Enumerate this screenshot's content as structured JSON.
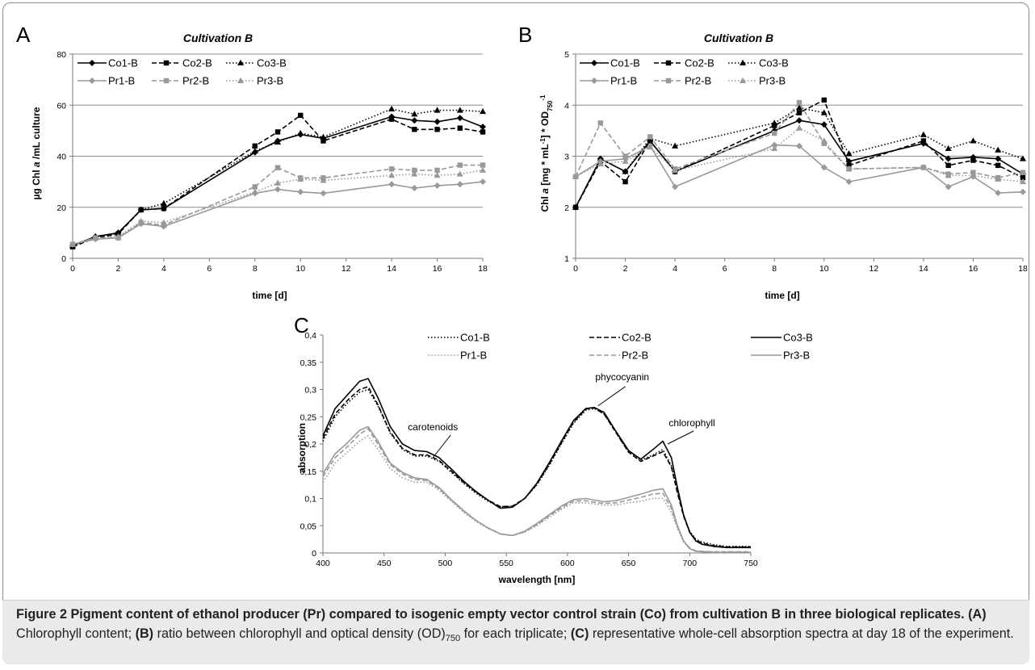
{
  "chart_data": [
    {
      "panel": "A",
      "type": "line",
      "title": "Cultivation B",
      "xlabel": "time [d]",
      "ylabel_parts": [
        "µg Chl ",
        "a",
        " /mL culture"
      ],
      "xlim": [
        0,
        18
      ],
      "ylim": [
        0,
        80
      ],
      "xticks": [
        0,
        2,
        4,
        6,
        8,
        10,
        12,
        14,
        16,
        18
      ],
      "yticks": [
        0,
        20,
        40,
        60,
        80
      ],
      "grid": "horizontal",
      "x": [
        0,
        1,
        2,
        3,
        4,
        8,
        9,
        10,
        11,
        14,
        15,
        16,
        17,
        18
      ],
      "series": [
        {
          "name": "Co1-B",
          "style": "solid",
          "marker": "diamond",
          "color": "#000000",
          "values": [
            5,
            8.5,
            10,
            19,
            19.5,
            41.5,
            46,
            48.5,
            47,
            55.5,
            54,
            53.5,
            55,
            51.5
          ]
        },
        {
          "name": "Co2-B",
          "style": "dashed",
          "marker": "square",
          "color": "#000000",
          "values": [
            4.5,
            8,
            9.5,
            19,
            19.5,
            44,
            49.5,
            56,
            46,
            54.5,
            50.5,
            50.5,
            51,
            49.5
          ]
        },
        {
          "name": "Co3-B",
          "style": "dotted",
          "marker": "triangle",
          "color": "#000000",
          "values": [
            5,
            8.5,
            10,
            19,
            21.5,
            42,
            45.5,
            49,
            47.5,
            58.5,
            56.5,
            58,
            58,
            57.5
          ]
        },
        {
          "name": "Pr1-B",
          "style": "solid",
          "marker": "diamond",
          "color": "#999999",
          "values": [
            5.5,
            7.5,
            8,
            13.5,
            12.5,
            25.5,
            27,
            26,
            25.5,
            29,
            27.5,
            28.5,
            29,
            30
          ]
        },
        {
          "name": "Pr2-B",
          "style": "dashed",
          "marker": "square",
          "color": "#999999",
          "values": [
            5.5,
            8,
            8,
            14,
            13,
            28,
            35.5,
            31.5,
            31.5,
            35,
            34.5,
            34.5,
            36.5,
            36.5
          ]
        },
        {
          "name": "Pr3-B",
          "style": "dotted",
          "marker": "triangle",
          "color": "#999999",
          "values": [
            5.5,
            8,
            8.5,
            14.5,
            14,
            26,
            29.5,
            31,
            30.5,
            32.5,
            33,
            32.5,
            33,
            34.5
          ]
        }
      ]
    },
    {
      "panel": "B",
      "type": "line",
      "title": "Cultivation B",
      "xlabel": "time [d]",
      "ylabel_parts": [
        "Chl ",
        "a",
        " [mg * mL",
        "-1",
        "] * OD",
        "750",
        "-1"
      ],
      "xlim": [
        0,
        18
      ],
      "ylim": [
        1,
        5
      ],
      "xticks": [
        0,
        2,
        4,
        6,
        8,
        10,
        12,
        14,
        16,
        18
      ],
      "yticks": [
        1,
        2,
        3,
        4,
        5
      ],
      "grid": "horizontal",
      "x": [
        0,
        1,
        2,
        3,
        4,
        8,
        9,
        10,
        11,
        14,
        15,
        16,
        17,
        18
      ],
      "series": [
        {
          "name": "Co1-B",
          "style": "solid",
          "marker": "diamond",
          "color": "#000000",
          "values": [
            2.0,
            2.95,
            2.7,
            3.3,
            2.7,
            3.5,
            3.7,
            3.62,
            2.9,
            3.25,
            2.95,
            2.98,
            2.95,
            2.65
          ]
        },
        {
          "name": "Co2-B",
          "style": "dashed",
          "marker": "square",
          "color": "#000000",
          "values": [
            2.0,
            2.9,
            2.5,
            3.3,
            2.7,
            3.6,
            3.85,
            4.1,
            2.82,
            3.3,
            2.82,
            2.92,
            2.82,
            2.58
          ]
        },
        {
          "name": "Co3-B",
          "style": "dotted",
          "marker": "triangle",
          "color": "#000000",
          "values": [
            2.0,
            2.95,
            2.7,
            3.35,
            3.2,
            3.65,
            3.95,
            3.85,
            3.05,
            3.42,
            3.15,
            3.3,
            3.12,
            2.95
          ]
        },
        {
          "name": "Pr1-B",
          "style": "solid",
          "marker": "diamond",
          "color": "#999999",
          "values": [
            2.6,
            2.9,
            2.95,
            3.2,
            2.4,
            3.22,
            3.2,
            2.78,
            2.5,
            2.78,
            2.4,
            2.6,
            2.28,
            2.3
          ]
        },
        {
          "name": "Pr2-B",
          "style": "dashed",
          "marker": "square",
          "color": "#999999",
          "values": [
            2.6,
            3.65,
            3.0,
            3.38,
            2.75,
            3.45,
            4.05,
            3.25,
            2.75,
            2.78,
            2.65,
            2.68,
            2.58,
            2.68
          ]
        },
        {
          "name": "Pr3-B",
          "style": "dotted",
          "marker": "triangle",
          "color": "#999999",
          "values": [
            2.6,
            2.85,
            2.9,
            3.18,
            2.72,
            3.15,
            3.55,
            3.3,
            2.75,
            2.78,
            2.62,
            2.62,
            2.55,
            2.5
          ]
        }
      ]
    },
    {
      "panel": "C",
      "type": "line",
      "title": "",
      "xlabel": "wavelength [nm]",
      "ylabel": "absorption",
      "xlim": [
        400,
        750
      ],
      "ylim": [
        0,
        0.4
      ],
      "xticks": [
        400,
        450,
        500,
        550,
        600,
        650,
        700,
        750
      ],
      "xtick_labels": [
        "400",
        "450",
        "500",
        "550",
        "600",
        "650",
        "700",
        "750"
      ],
      "yticks": [
        0,
        0.05,
        0.1,
        0.15,
        0.2,
        0.25,
        0.3,
        0.35,
        0.4
      ],
      "ytick_labels": [
        "0",
        "0,05",
        "0,1",
        "0,15",
        "0,2",
        "0,25",
        "0,3",
        "0,35",
        "0,4"
      ],
      "grid": "none",
      "x": [
        400,
        410,
        420,
        430,
        437,
        445,
        455,
        465,
        475,
        485,
        495,
        505,
        515,
        525,
        535,
        545,
        555,
        565,
        575,
        585,
        595,
        605,
        615,
        622,
        630,
        640,
        650,
        660,
        670,
        678,
        685,
        690,
        695,
        700,
        705,
        710,
        720,
        730,
        740,
        750
      ],
      "series": [
        {
          "name": "Co1-B",
          "style": "dotted",
          "color": "#000000",
          "values": [
            0.205,
            0.25,
            0.275,
            0.295,
            0.3,
            0.27,
            0.22,
            0.19,
            0.178,
            0.178,
            0.168,
            0.148,
            0.128,
            0.11,
            0.095,
            0.085,
            0.085,
            0.1,
            0.125,
            0.16,
            0.2,
            0.238,
            0.262,
            0.265,
            0.255,
            0.22,
            0.185,
            0.17,
            0.18,
            0.19,
            0.16,
            0.115,
            0.07,
            0.04,
            0.025,
            0.02,
            0.015,
            0.012,
            0.012,
            0.012
          ]
        },
        {
          "name": "Co2-B",
          "style": "dashed",
          "color": "#000000",
          "values": [
            0.21,
            0.255,
            0.28,
            0.3,
            0.305,
            0.272,
            0.222,
            0.192,
            0.18,
            0.18,
            0.17,
            0.15,
            0.13,
            0.112,
            0.097,
            0.085,
            0.086,
            0.1,
            0.126,
            0.162,
            0.202,
            0.24,
            0.264,
            0.266,
            0.255,
            0.22,
            0.185,
            0.168,
            0.178,
            0.186,
            0.158,
            0.11,
            0.068,
            0.038,
            0.024,
            0.018,
            0.013,
            0.011,
            0.011,
            0.011
          ]
        },
        {
          "name": "Co3-B",
          "style": "solid",
          "color": "#000000",
          "values": [
            0.215,
            0.265,
            0.29,
            0.315,
            0.32,
            0.285,
            0.232,
            0.2,
            0.188,
            0.186,
            0.175,
            0.154,
            0.132,
            0.113,
            0.097,
            0.082,
            0.084,
            0.1,
            0.128,
            0.165,
            0.205,
            0.243,
            0.265,
            0.267,
            0.258,
            0.222,
            0.188,
            0.172,
            0.19,
            0.205,
            0.175,
            0.12,
            0.07,
            0.038,
            0.022,
            0.016,
            0.012,
            0.01,
            0.01,
            0.01
          ]
        },
        {
          "name": "Pr1-B",
          "style": "dotted",
          "color": "#999999",
          "values": [
            0.13,
            0.165,
            0.185,
            0.205,
            0.215,
            0.19,
            0.155,
            0.138,
            0.13,
            0.13,
            0.115,
            0.095,
            0.075,
            0.058,
            0.045,
            0.035,
            0.032,
            0.038,
            0.05,
            0.065,
            0.08,
            0.092,
            0.092,
            0.09,
            0.088,
            0.088,
            0.092,
            0.095,
            0.1,
            0.1,
            0.075,
            0.045,
            0.02,
            0.008,
            0.004,
            0.003,
            0.002,
            0.002,
            0.002,
            0.002
          ]
        },
        {
          "name": "Pr2-B",
          "style": "dashed",
          "color": "#999999",
          "values": [
            0.14,
            0.175,
            0.195,
            0.218,
            0.228,
            0.2,
            0.162,
            0.145,
            0.135,
            0.133,
            0.118,
            0.097,
            0.077,
            0.06,
            0.046,
            0.035,
            0.032,
            0.039,
            0.052,
            0.068,
            0.083,
            0.095,
            0.096,
            0.093,
            0.091,
            0.092,
            0.097,
            0.102,
            0.108,
            0.11,
            0.082,
            0.048,
            0.022,
            0.009,
            0.004,
            0.003,
            0.002,
            0.002,
            0.002,
            0.002
          ]
        },
        {
          "name": "Pr3-B",
          "style": "solid",
          "color": "#999999",
          "values": [
            0.145,
            0.182,
            0.202,
            0.225,
            0.232,
            0.205,
            0.165,
            0.148,
            0.138,
            0.135,
            0.12,
            0.098,
            0.078,
            0.06,
            0.046,
            0.035,
            0.032,
            0.04,
            0.054,
            0.07,
            0.086,
            0.098,
            0.1,
            0.097,
            0.094,
            0.096,
            0.102,
            0.108,
            0.115,
            0.118,
            0.088,
            0.05,
            0.022,
            0.008,
            0.003,
            0.002,
            0.001,
            0.001,
            0.001,
            0.001
          ]
        }
      ],
      "annotations": [
        {
          "text": "carotenoids",
          "x": 490,
          "y": 0.175
        },
        {
          "text": "phycocyanin",
          "x": 625,
          "y": 0.27
        },
        {
          "text": "chlorophyll",
          "x": 682,
          "y": 0.2
        }
      ]
    }
  ],
  "caption": {
    "figure_label": "Figure 2",
    "title": "Pigment content of ethanol producer (Pr) compared to isogenic empty vector control strain (Co) from cultivation B in three biological replicates.",
    "part_a_label": "(A)",
    "part_a_text": "Chlorophyll content;",
    "part_b_label": "(B)",
    "part_b_text_1": "ratio between chlorophyll and optical density (OD)",
    "part_b_sub": "750",
    "part_b_text_2": "for each triplicate;",
    "part_c_label": "(C)",
    "part_c_text": "representative whole-cell absorption spectra at day 18 of the experiment."
  }
}
